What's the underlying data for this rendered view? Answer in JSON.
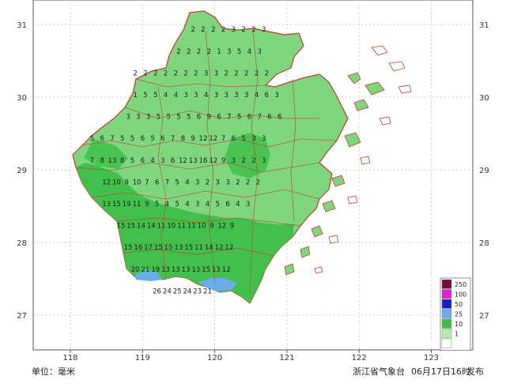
{
  "map": {
    "lat_labels": [
      "31",
      "30",
      "29",
      "28",
      "27"
    ],
    "lat_values": [
      31,
      30,
      29,
      28,
      27
    ],
    "lon_labels": [
      "118",
      "119",
      "120",
      "121",
      "122",
      "123"
    ],
    "lon_values": [
      118,
      119,
      120,
      121,
      122,
      123
    ],
    "region_color": "#7ed67e",
    "region_color_light": "#b6eab0",
    "region_color_dark": "#3fbf4a",
    "region_color_blue": "#6aaee8",
    "border_color": "#c0392b"
  },
  "legend": {
    "items": [
      {
        "label": "250",
        "color": "#7a0a3c"
      },
      {
        "label": "100",
        "color": "#e01fd2"
      },
      {
        "label": "50",
        "color": "#1a1ac8"
      },
      {
        "label": "25",
        "color": "#6aaee8"
      },
      {
        "label": "10",
        "color": "#3fbf4a"
      },
      {
        "label": "1",
        "color": "#b6eab0"
      },
      {
        "label": "",
        "color": "#ffffff"
      }
    ]
  },
  "grid_values": {
    "rows": [
      {
        "lat": 30.9,
        "lon0": 119.7,
        "step": 0.14,
        "vals": [
          "2",
          "2",
          "2",
          "2",
          "3",
          "2",
          "2",
          "3"
        ]
      },
      {
        "lat": 30.6,
        "lon0": 119.5,
        "step": 0.14,
        "vals": [
          "2",
          "2",
          "2",
          "2",
          "1",
          "3",
          "5",
          "4",
          "3"
        ]
      },
      {
        "lat": 30.3,
        "lon0": 118.9,
        "step": 0.14,
        "vals": [
          "2",
          "2",
          "2",
          "2",
          "2",
          "2",
          "2",
          "3",
          "3",
          "2",
          "2",
          "2",
          "2",
          "2"
        ]
      },
      {
        "lat": 30.0,
        "lon0": 118.9,
        "step": 0.14,
        "vals": [
          "1",
          "5",
          "5",
          "4",
          "4",
          "3",
          "3",
          "4",
          "3",
          "3",
          "3",
          "3",
          "4",
          "6",
          "3"
        ]
      },
      {
        "lat": 29.7,
        "lon0": 118.8,
        "step": 0.14,
        "vals": [
          "3",
          "3",
          "3",
          "5",
          "5",
          "5",
          "5",
          "6",
          "9",
          "6",
          "7",
          "5",
          "6",
          "7",
          "6",
          "6"
        ]
      },
      {
        "lat": 29.4,
        "lon0": 118.3,
        "step": 0.14,
        "vals": [
          "5",
          "6",
          "7",
          "5",
          "5",
          "6",
          "5",
          "6",
          "7",
          "8",
          "9",
          "12",
          "12",
          "7",
          "6",
          "5",
          "3",
          "3"
        ]
      },
      {
        "lat": 29.1,
        "lon0": 118.3,
        "step": 0.14,
        "vals": [
          "7",
          "8",
          "13",
          "8",
          "5",
          "6",
          "4",
          "3",
          "6",
          "12",
          "13",
          "16",
          "12",
          "9",
          "3",
          "2",
          "2",
          "3"
        ]
      },
      {
        "lat": 28.8,
        "lon0": 118.5,
        "step": 0.14,
        "vals": [
          "12",
          "10",
          "9",
          "10",
          "7",
          "6",
          "7",
          "5",
          "4",
          "3",
          "2",
          "3",
          "3",
          "2",
          "2",
          "2"
        ]
      },
      {
        "lat": 28.5,
        "lon0": 118.5,
        "step": 0.14,
        "vals": [
          "13",
          "15",
          "19",
          "11",
          "9",
          "5",
          "4",
          "5",
          "4",
          "3",
          "4",
          "5",
          "6",
          "4",
          "3"
        ]
      },
      {
        "lat": 28.2,
        "lon0": 118.7,
        "step": 0.14,
        "vals": [
          "15",
          "15",
          "14",
          "14",
          "11",
          "10",
          "11",
          "11",
          "10",
          "9",
          "12",
          "9"
        ]
      },
      {
        "lat": 27.9,
        "lon0": 118.8,
        "step": 0.14,
        "vals": [
          "15",
          "16",
          "17",
          "15",
          "15",
          "13",
          "15",
          "11",
          "14",
          "12",
          "12"
        ]
      },
      {
        "lat": 27.6,
        "lon0": 118.9,
        "step": 0.14,
        "vals": [
          "20",
          "21",
          "19",
          "13",
          "13",
          "13",
          "13",
          "15",
          "13",
          "12"
        ]
      },
      {
        "lat": 27.3,
        "lon0": 119.2,
        "step": 0.14,
        "vals": [
          "26",
          "24",
          "25",
          "24",
          "23",
          "21"
        ]
      }
    ]
  },
  "footer": {
    "unit_label": "单位：毫米",
    "publisher": "浙江省气象台",
    "timestamp": "06月17日16时",
    "release": "发布"
  }
}
